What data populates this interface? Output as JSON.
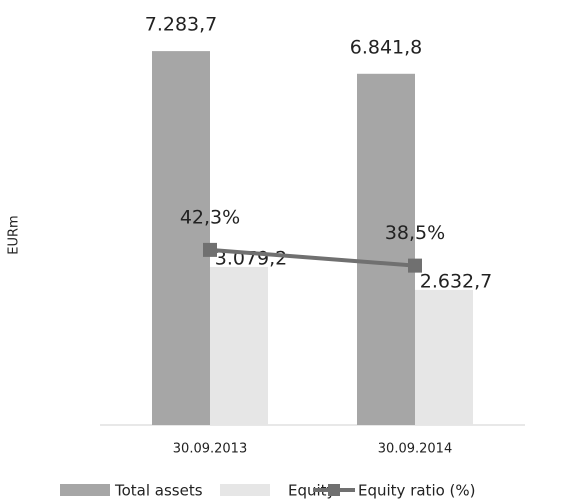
{
  "chart_data": {
    "type": "bar",
    "y_label": "EURm",
    "categories": [
      "30.09.2013",
      "30.09.2014"
    ],
    "series": [
      {
        "name": "Total assets",
        "color": "#a6a6a6",
        "values": [
          7283.7,
          6841.8
        ],
        "value_labels": [
          "7.283,7",
          "6.841,8"
        ]
      },
      {
        "name": "Equity",
        "color": "#e6e6e6",
        "values": [
          3079.2,
          2632.7
        ],
        "value_labels": [
          "3.079,2",
          "2.632,7"
        ]
      },
      {
        "name": "Equity ratio (%)",
        "type": "line",
        "axis": "y2",
        "color": "#707070",
        "values": [
          42.3,
          38.5
        ],
        "value_labels": [
          "42,3%",
          "38,5%"
        ]
      }
    ],
    "ylim": [
      0,
      7500
    ],
    "y2lim": [
      0,
      93
    ],
    "legend": "bottom"
  }
}
